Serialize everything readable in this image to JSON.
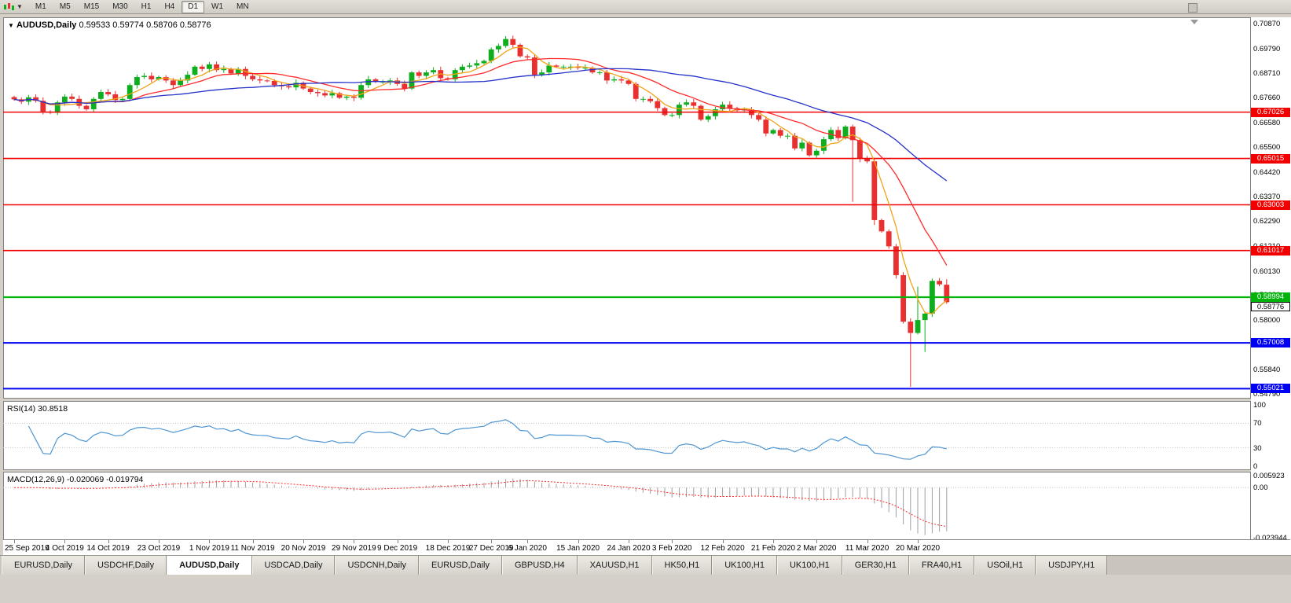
{
  "toolbar": {
    "chart_icon": "candlestick-chart",
    "timeframes": [
      {
        "label": "M1",
        "active": false
      },
      {
        "label": "M5",
        "active": false
      },
      {
        "label": "M15",
        "active": false
      },
      {
        "label": "M30",
        "active": false
      },
      {
        "label": "H1",
        "active": false
      },
      {
        "label": "H4",
        "active": false
      },
      {
        "label": "D1",
        "active": true
      },
      {
        "label": "W1",
        "active": false
      },
      {
        "label": "MN",
        "active": false
      }
    ]
  },
  "chart": {
    "title": "AUDUSD,Daily",
    "ohlc_text": "0.59533 0.59774 0.58706 0.58776",
    "price_axis_labels": [
      "0.70870",
      "0.69790",
      "0.68710",
      "0.67660",
      "0.66580",
      "0.65500",
      "0.64420",
      "0.63370",
      "0.62290",
      "0.61210",
      "0.60130",
      "0.59080",
      "0.58000",
      "0.56920",
      "0.55840",
      "0.54790"
    ],
    "hlines": [
      {
        "price": 0.67026,
        "label": "0.67026",
        "color": "#f20000",
        "w": 1.6
      },
      {
        "price": 0.65015,
        "label": "0.65015",
        "color": "#f20000",
        "w": 1.6
      },
      {
        "price": 0.63003,
        "label": "0.63003",
        "color": "#f20000",
        "w": 1.6
      },
      {
        "price": 0.61017,
        "label": "0.61017",
        "color": "#f20000",
        "w": 1.6
      },
      {
        "price": 0.58994,
        "label": "0.58994",
        "color": "#00b40c",
        "w": 2.2
      },
      {
        "price": 0.57008,
        "label": "0.57008",
        "color": "#0000f2",
        "w": 2
      },
      {
        "price": 0.55021,
        "label": "0.55021",
        "color": "#0000f2",
        "w": 2
      }
    ],
    "current_price": {
      "price": 0.58776,
      "label": "0.58776"
    }
  },
  "chart_data": {
    "type": "candlestick",
    "symbol": "AUDUSD",
    "period": "Daily",
    "ylim": [
      0.5466,
      0.7104
    ],
    "first_open": 0.6768,
    "closes": [
      0.6758,
      0.6748,
      0.6767,
      0.6752,
      0.6705,
      0.67,
      0.6745,
      0.677,
      0.676,
      0.673,
      0.6715,
      0.676,
      0.679,
      0.678,
      0.6755,
      0.676,
      0.682,
      0.6855,
      0.686,
      0.6845,
      0.6855,
      0.684,
      0.682,
      0.684,
      0.6865,
      0.69,
      0.689,
      0.691,
      0.6885,
      0.689,
      0.687,
      0.689,
      0.686,
      0.6845,
      0.684,
      0.6838,
      0.682,
      0.6815,
      0.681,
      0.683,
      0.6805,
      0.679,
      0.6785,
      0.6775,
      0.6785,
      0.6765,
      0.677,
      0.6765,
      0.682,
      0.6845,
      0.6835,
      0.6835,
      0.684,
      0.6825,
      0.6805,
      0.6875,
      0.686,
      0.6875,
      0.6885,
      0.685,
      0.6845,
      0.6885,
      0.69,
      0.6905,
      0.6915,
      0.6925,
      0.6975,
      0.699,
      0.702,
      0.6995,
      0.6945,
      0.694,
      0.6865,
      0.6875,
      0.6905,
      0.69,
      0.69,
      0.69,
      0.6895,
      0.6895,
      0.6875,
      0.6875,
      0.684,
      0.6845,
      0.684,
      0.6825,
      0.676,
      0.676,
      0.675,
      0.672,
      0.669,
      0.669,
      0.6735,
      0.6745,
      0.673,
      0.667,
      0.6685,
      0.6715,
      0.6735,
      0.672,
      0.671,
      0.6715,
      0.669,
      0.667,
      0.661,
      0.6625,
      0.66,
      0.66,
      0.6545,
      0.657,
      0.6515,
      0.6535,
      0.6585,
      0.6625,
      0.659,
      0.664,
      0.6581,
      0.65,
      0.6489,
      0.6234,
      0.6185,
      0.612,
      0.5995,
      0.5793,
      0.5744,
      0.58,
      0.5828,
      0.597,
      0.5955,
      0.58776
    ],
    "specials": {
      "116": {
        "l": 0.6313
      },
      "119": {
        "l": 0.6213
      },
      "124": {
        "l": 0.551
      },
      "125": {
        "h": 0.5945
      },
      "126": {
        "l": 0.5661
      },
      "129": {
        "o": 0.59533,
        "h": 0.59774,
        "l": 0.58706
      }
    },
    "date_ticks": [
      {
        "i": 0,
        "label": "25 Sep 2019"
      },
      {
        "i": 7,
        "label": "4 Oct 2019"
      },
      {
        "i": 13,
        "label": "14 Oct 2019"
      },
      {
        "i": 20,
        "label": "23 Oct 2019"
      },
      {
        "i": 27,
        "label": "1 Nov 2019"
      },
      {
        "i": 33,
        "label": "11 Nov 2019"
      },
      {
        "i": 40,
        "label": "20 Nov 2019"
      },
      {
        "i": 47,
        "label": "29 Nov 2019"
      },
      {
        "i": 53,
        "label": "9 Dec 2019"
      },
      {
        "i": 60,
        "label": "18 Dec 2019"
      },
      {
        "i": 66,
        "label": "27 Dec 2019"
      },
      {
        "i": 71,
        "label": "6 Jan 2020"
      },
      {
        "i": 78,
        "label": "15 Jan 2020"
      },
      {
        "i": 85,
        "label": "24 Jan 2020"
      },
      {
        "i": 91,
        "label": "3 Feb 2020"
      },
      {
        "i": 98,
        "label": "12 Feb 2020"
      },
      {
        "i": 105,
        "label": "21 Feb 2020"
      },
      {
        "i": 111,
        "label": "2 Mar 2020"
      },
      {
        "i": 118,
        "label": "11 Mar 2020"
      },
      {
        "i": 125,
        "label": "20 Mar 2020"
      }
    ],
    "moving_averages": [
      {
        "period": 5,
        "color": "#f0a418"
      },
      {
        "period": 13,
        "color": "#ff2a2a"
      },
      {
        "period": 34,
        "color": "#2432c8"
      }
    ],
    "colors": {
      "up": "#0fae1f",
      "down": "#e83030"
    }
  },
  "rsi": {
    "name": "RSI(14)",
    "value": "30.8518",
    "axis_labels": [
      {
        "v": 100,
        "text": "100"
      },
      {
        "v": 70,
        "text": "70"
      },
      {
        "v": 30,
        "text": "30"
      },
      {
        "v": 0,
        "text": "0"
      }
    ],
    "levels": [
      70,
      30
    ],
    "color": "#4f96d2"
  },
  "macd": {
    "name": "MACD(12,26,9)",
    "value": "-0.020069 -0.019794",
    "axis_labels": [
      {
        "v": 0.005923,
        "text": "0.005923"
      },
      {
        "v": 0,
        "text": "0.00"
      },
      {
        "v": -0.023944,
        "text": "-0.023944"
      }
    ],
    "hist_color": "#9aa0a6",
    "signal_color": "#ff2a2a"
  },
  "tabs": [
    {
      "label": "EURUSD,Daily",
      "active": false
    },
    {
      "label": "USDCHF,Daily",
      "active": false
    },
    {
      "label": "AUDUSD,Daily",
      "active": true
    },
    {
      "label": "USDCAD,Daily",
      "active": false
    },
    {
      "label": "USDCNH,Daily",
      "active": false
    },
    {
      "label": "EURUSD,Daily",
      "active": false
    },
    {
      "label": "GBPUSD,H4",
      "active": false
    },
    {
      "label": "XAUUSD,H1",
      "active": false
    },
    {
      "label": "HK50,H1",
      "active": false
    },
    {
      "label": "UK100,H1",
      "active": false
    },
    {
      "label": "UK100,H1",
      "active": false
    },
    {
      "label": "GER30,H1",
      "active": false
    },
    {
      "label": "FRA40,H1",
      "active": false
    },
    {
      "label": "USOil,H1",
      "active": false
    },
    {
      "label": "USDJPY,H1",
      "active": false
    }
  ]
}
